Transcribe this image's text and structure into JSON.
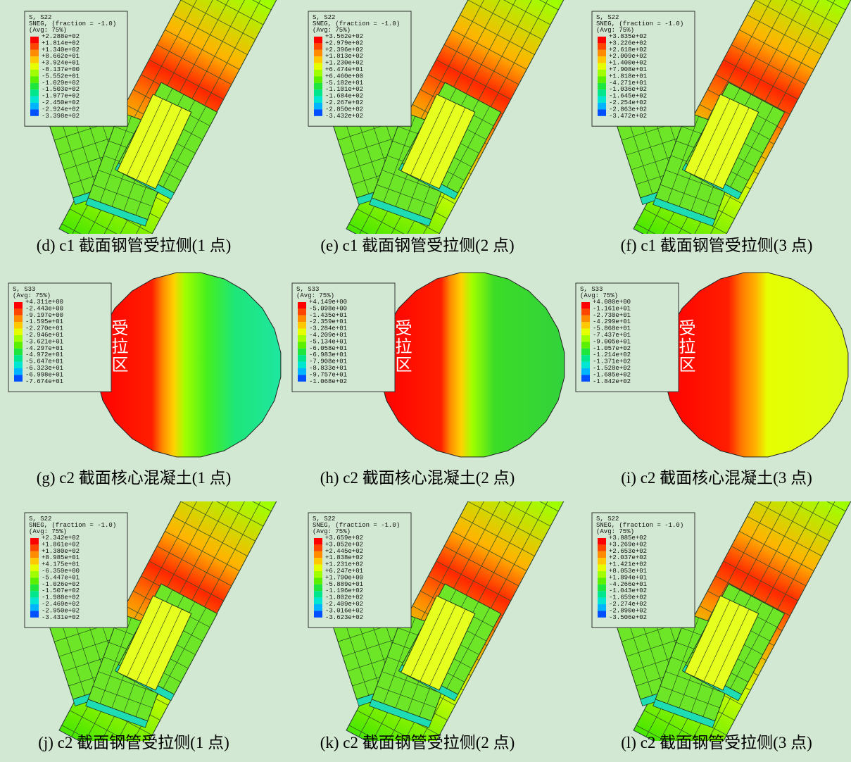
{
  "panels": [
    {
      "caption": "(d) c1 截面钢管受拉侧(1 点)",
      "legend": {
        "title": [
          "S, S22",
          "SNEG, (fraction = -1.0)",
          "(Avg: 75%)"
        ],
        "values": [
          "+2.288e+02",
          "+1.814e+02",
          "+1.340e+02",
          "+8.662e+01",
          "+3.924e+01",
          "-8.137e+00",
          "-5.552e+01",
          "-1.029e+02",
          "-1.503e+02",
          "-1.977e+02",
          "-2.450e+02",
          "-2.924e+02",
          "-3.398e+02"
        ]
      }
    },
    {
      "caption": "(e) c1 截面钢管受拉侧(2 点)",
      "legend": {
        "title": [
          "S, S22",
          "SNEG, (fraction = -1.0)",
          "(Avg: 75%)"
        ],
        "values": [
          "+3.562e+02",
          "+2.979e+02",
          "+2.396e+02",
          "+1.813e+02",
          "+1.230e+02",
          "+6.474e+01",
          "+6.460e+00",
          "-5.182e+01",
          "-1.101e+02",
          "-1.684e+02",
          "-2.267e+02",
          "-2.850e+02",
          "-3.432e+02"
        ]
      }
    },
    {
      "caption": "(f) c1 截面钢管受拉侧(3 点)",
      "legend": {
        "title": [
          "S, S22",
          "SNEG, (fraction = -1.0)",
          "(Avg: 75%)"
        ],
        "values": [
          "+3.835e+02",
          "+3.226e+02",
          "+2.618e+02",
          "+2.009e+02",
          "+1.400e+02",
          "+7.908e+01",
          "+1.818e+01",
          "-4.271e+01",
          "-1.036e+02",
          "-1.645e+02",
          "-2.254e+02",
          "-2.863e+02",
          "-3.472e+02"
        ]
      }
    },
    {
      "caption": "(g) c2 截面核心混凝土(1 点)",
      "zone_label": "受拉区",
      "legend": {
        "title": [
          "S, S33",
          "(Avg: 75%)"
        ],
        "values": [
          "+4.311e+00",
          "-2.443e+00",
          "-9.197e+00",
          "-1.595e+01",
          "-2.270e+01",
          "-2.946e+01",
          "-3.621e+01",
          "-4.297e+01",
          "-4.972e+01",
          "-5.647e+01",
          "-6.323e+01",
          "-6.998e+01",
          "-7.674e+01"
        ]
      }
    },
    {
      "caption": "(h) c2 截面核心混凝土(2 点)",
      "zone_label": "受拉区",
      "legend": {
        "title": [
          "S, S33",
          "(Avg: 75%)"
        ],
        "values": [
          "+4.149e+00",
          "-5.098e+00",
          "-1.435e+01",
          "-2.359e+01",
          "-3.284e+01",
          "-4.209e+01",
          "-5.134e+01",
          "-6.058e+01",
          "-6.983e+01",
          "-7.908e+01",
          "-8.833e+01",
          "-9.757e+01",
          "-1.068e+02"
        ]
      }
    },
    {
      "caption": "(i) c2 截面核心混凝土(3 点)",
      "zone_label": "受拉区",
      "legend": {
        "title": [
          "S, S33",
          "(Avg: 75%)"
        ],
        "values": [
          "+4.080e+00",
          "-1.161e+01",
          "-2.730e+01",
          "-4.299e+01",
          "-5.868e+01",
          "-7.437e+01",
          "-9.005e+01",
          "-1.057e+02",
          "-1.214e+02",
          "-1.371e+02",
          "-1.528e+02",
          "-1.685e+02",
          "-1.842e+02"
        ]
      }
    },
    {
      "caption": "(j) c2 截面钢管受拉侧(1 点)",
      "legend": {
        "title": [
          "S, S22",
          "SNEG, (fraction = -1.0)",
          "(Avg: 75%)"
        ],
        "values": [
          "+2.342e+02",
          "+1.861e+02",
          "+1.380e+02",
          "+8.985e+01",
          "+4.175e+01",
          "-6.359e+00",
          "-5.447e+01",
          "-1.026e+02",
          "-1.507e+02",
          "-1.988e+02",
          "-2.469e+02",
          "-2.950e+02",
          "-3.431e+02"
        ]
      }
    },
    {
      "caption": "(k) c2 截面钢管受拉侧(2 点)",
      "legend": {
        "title": [
          "S, S22",
          "SNEG, (fraction = -1.0)",
          "(Avg: 75%)"
        ],
        "values": [
          "+3.659e+02",
          "+3.052e+02",
          "+2.445e+02",
          "+1.838e+02",
          "+1.231e+02",
          "+6.247e+01",
          "+1.790e+00",
          "-5.889e+01",
          "-1.196e+02",
          "-1.802e+02",
          "-2.409e+02",
          "-3.016e+02",
          "-3.623e+02"
        ]
      }
    },
    {
      "caption": "(l) c2 截面钢管受拉侧(3 点)",
      "legend": {
        "title": [
          "S, S22",
          "SNEG, (fraction = -1.0)",
          "(Avg: 75%)"
        ],
        "values": [
          "+3.885e+02",
          "+3.269e+02",
          "+2.653e+02",
          "+2.037e+02",
          "+1.421e+02",
          "+8.053e+01",
          "+1.894e+01",
          "-4.266e+01",
          "-1.043e+02",
          "-1.659e+02",
          "-2.274e+02",
          "-2.890e+02",
          "-3.506e+02"
        ]
      }
    }
  ]
}
